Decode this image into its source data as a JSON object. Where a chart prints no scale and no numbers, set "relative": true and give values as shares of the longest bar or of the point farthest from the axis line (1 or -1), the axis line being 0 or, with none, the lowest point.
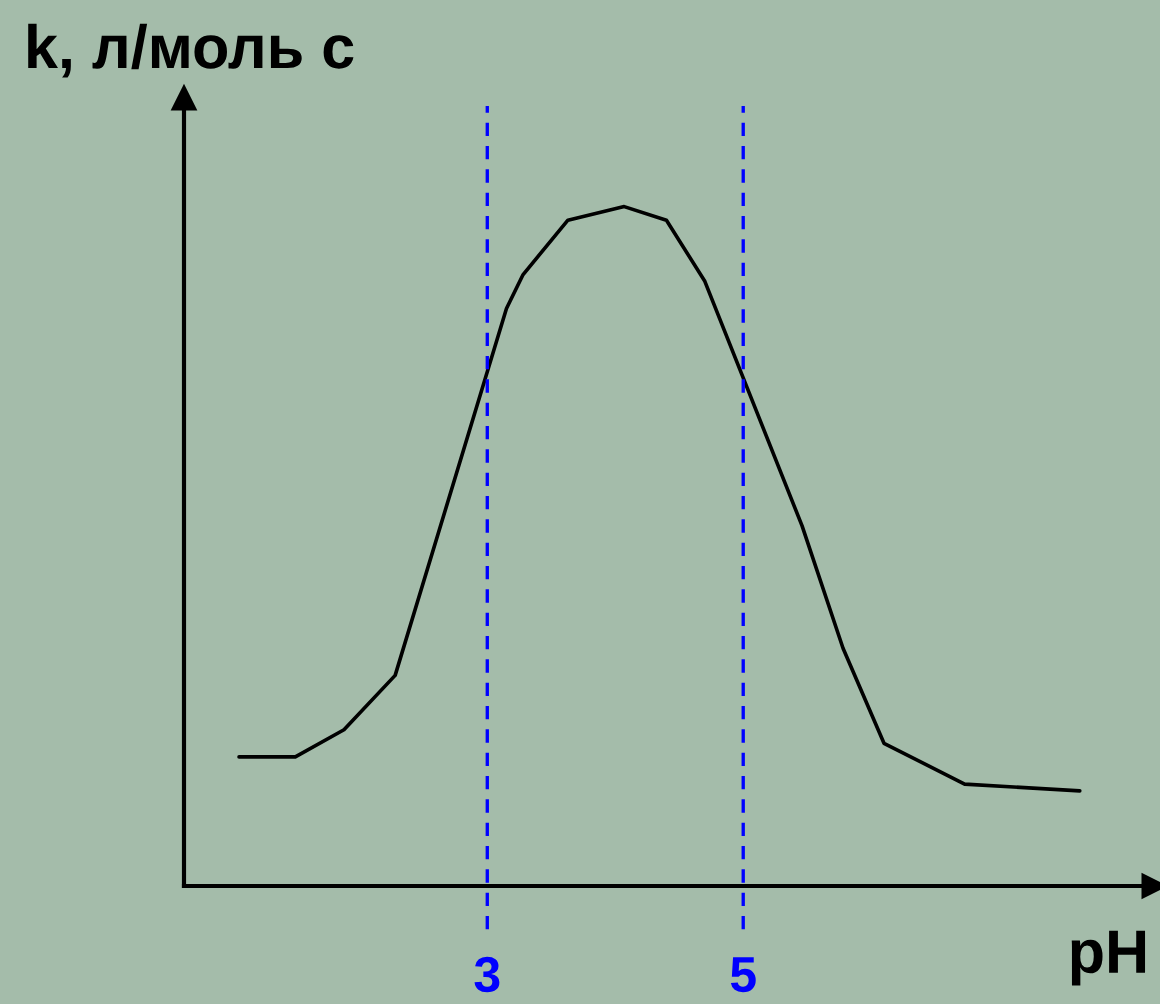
{
  "chart_data": {
    "type": "line",
    "xlabel": "pH",
    "ylabel": "k, л/моль с",
    "relative": true,
    "x": [
      1.06,
      1.5,
      1.88,
      2.28,
      3.15,
      3.28,
      3.63,
      4.07,
      4.4,
      4.7,
      5.46,
      5.78,
      6.1,
      6.73,
      7.63
    ],
    "series": [
      {
        "color": "#000000",
        "values": [
          0.19,
          0.19,
          0.23,
          0.31,
          0.85,
          0.9,
          0.98,
          1,
          0.98,
          0.89,
          0.53,
          0.35,
          0.21,
          0.15,
          0.14
        ]
      }
    ],
    "xlim": [
      0.63,
      8.21
    ],
    "xticks": [
      3,
      5
    ],
    "tick_labels": "x",
    "ref_lines": [
      {
        "axis": "x",
        "value": 3,
        "color": "#0000ff",
        "line_style": "dashed"
      },
      {
        "axis": "x",
        "value": 5,
        "color": "#0000ff",
        "line_style": "dashed"
      }
    ]
  }
}
